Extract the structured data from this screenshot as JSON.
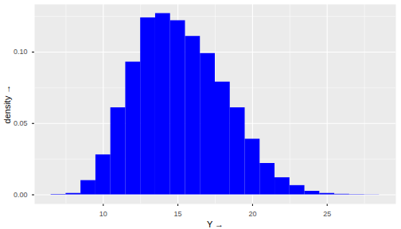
{
  "chart_data": {
    "type": "histogram",
    "xlabel": "Y",
    "ylabel": "density",
    "bins": [
      6.5,
      7.5,
      8.5,
      9.5,
      10.5,
      11.5,
      12.5,
      13.5,
      14.5,
      15.5,
      16.5,
      17.5,
      18.5,
      19.5,
      20.5,
      21.5,
      22.5,
      23.5,
      24.5,
      25.5,
      26.5,
      27.5,
      28.5
    ],
    "values": [
      0.0003,
      0.001,
      0.01,
      0.028,
      0.061,
      0.093,
      0.124,
      0.127,
      0.122,
      0.111,
      0.099,
      0.079,
      0.061,
      0.039,
      0.022,
      0.012,
      0.0065,
      0.0025,
      0.001,
      0.0004,
      0.0002,
      0.0001
    ],
    "color": "blue",
    "xlim": [
      5.4,
      29.6
    ],
    "xticks": [
      10,
      15,
      20,
      25
    ],
    "ylim": [
      -0.0064,
      0.1334
    ],
    "yticks": [
      {
        "value": 0,
        "label": "0.00"
      },
      {
        "value": 0.05,
        "label": "0.05"
      },
      {
        "value": 0.1,
        "label": "0.10"
      }
    ],
    "grid": true
  }
}
